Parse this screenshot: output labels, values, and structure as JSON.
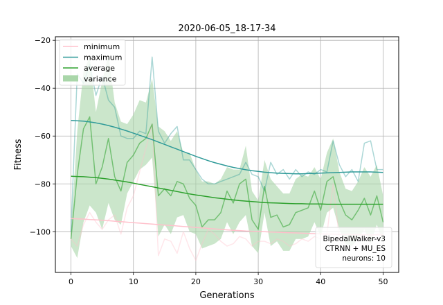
{
  "chart_data": {
    "type": "line",
    "title": "2020-06-05_18-17-34",
    "xlabel": "Generations",
    "ylabel": "Fitness",
    "xlim": [
      -2.5,
      52.5
    ],
    "ylim": [
      -117,
      -18.5
    ],
    "xticks": [
      0,
      10,
      20,
      30,
      40,
      50
    ],
    "yticks": [
      -100,
      -80,
      -60,
      -40,
      -20
    ],
    "grid": true,
    "legend_position": "top-left",
    "legend": [
      {
        "label": "minimum",
        "color": "#ffc0cb",
        "kind": "line"
      },
      {
        "label": "maximum",
        "color": "#2e9a98",
        "kind": "line"
      },
      {
        "label": "average",
        "color": "#2ca02c",
        "kind": "line"
      },
      {
        "label": "variance",
        "color": "#a9d6a9",
        "kind": "patch"
      }
    ],
    "info_box": {
      "position": "bottom-right",
      "lines": [
        "BipedalWalker-v3",
        "CTRNN + MU_ES",
        "neurons: 10"
      ]
    },
    "x": [
      0,
      1,
      2,
      3,
      4,
      5,
      6,
      7,
      8,
      9,
      10,
      11,
      12,
      13,
      14,
      15,
      16,
      17,
      18,
      19,
      20,
      21,
      22,
      23,
      24,
      25,
      26,
      27,
      28,
      29,
      30,
      31,
      32,
      33,
      34,
      35,
      36,
      37,
      38,
      39,
      40,
      41,
      42,
      43,
      44,
      45,
      46,
      47,
      48,
      49,
      50
    ],
    "series": [
      {
        "name": "minimum",
        "color": "#ffc0cb",
        "role": "raw",
        "values": [
          -103,
          -106,
          -97,
          -92,
          -96,
          -99,
          -95,
          -93,
          -101,
          -90,
          -85,
          -75,
          -65,
          -55,
          -110,
          -103,
          -104,
          -109,
          -100,
          -107,
          -112,
          -105,
          -99,
          -101,
          -104,
          -106,
          -105,
          -102,
          -103,
          -106,
          -104,
          -104,
          -105,
          -103,
          -104,
          -106,
          -105,
          -103,
          -104,
          -102,
          -103,
          -101,
          -80,
          -103,
          -102,
          -103,
          -101,
          -103,
          -102,
          -101,
          -100
        ]
      },
      {
        "name": "maximum",
        "color": "#2e9a98",
        "role": "raw",
        "values": [
          -100,
          -34,
          -38,
          -30,
          -43,
          -35,
          -45,
          -48,
          -60,
          -61,
          -61,
          -58,
          -59,
          -27,
          -58,
          -63,
          -59,
          -56,
          -70,
          -70,
          -74,
          -78,
          -80,
          -80,
          -79,
          -78,
          -77,
          -76,
          -71,
          -76,
          -77,
          -83,
          -71,
          -76,
          -74,
          -78,
          -74,
          -77,
          -75,
          -76,
          -74,
          -75,
          -62,
          -72,
          -77,
          -74,
          -79,
          -63,
          -62,
          -74,
          -74
        ]
      },
      {
        "name": "average",
        "color": "#2ca02c",
        "role": "raw",
        "values": [
          -103,
          -76,
          -57,
          -52,
          -80,
          -73,
          -61,
          -77,
          -83,
          -71,
          -68,
          -63,
          -61,
          -55,
          -85,
          -82,
          -85,
          -79,
          -80,
          -86,
          -89,
          -98,
          -95,
          -95,
          -92,
          -83,
          -88,
          -80,
          -78,
          -95,
          -99,
          -81,
          -94,
          -93,
          -98,
          -97,
          -92,
          -91,
          -90,
          -83,
          -91,
          -79,
          -77,
          -87,
          -93,
          -95,
          -91,
          -86,
          -93,
          -85,
          -96
        ]
      },
      {
        "name": "variance",
        "color": "#a9d6a9",
        "role": "band",
        "lower": [
          -106,
          -111,
          -96,
          -89,
          -92,
          -99,
          -88,
          -95,
          -97,
          -84,
          -79,
          -74,
          -72,
          -69,
          -102,
          -97,
          -101,
          -94,
          -93,
          -100,
          -101,
          -107,
          -106,
          -105,
          -103,
          -96,
          -101,
          -96,
          -93,
          -106,
          -109,
          -92,
          -106,
          -104,
          -108,
          -108,
          -103,
          -103,
          -102,
          -96,
          -102,
          -92,
          -90,
          -99,
          -105,
          -106,
          -103,
          -99,
          -105,
          -97,
          -104
        ],
        "upper": [
          -100,
          -58,
          -33,
          -27,
          -50,
          -37,
          -26,
          -46,
          -54,
          -55,
          -51,
          -45,
          -46,
          -36,
          -56,
          -58,
          -62,
          -58,
          -67,
          -67,
          -74,
          -79,
          -79,
          -80,
          -78,
          -73,
          -74,
          -74,
          -64,
          -83,
          -87,
          -70,
          -78,
          -81,
          -84,
          -84,
          -78,
          -76,
          -77,
          -73,
          -78,
          -67,
          -61,
          -75,
          -82,
          -83,
          -79,
          -73,
          -77,
          -72,
          -85
        ]
      },
      {
        "name": "maximum-trend",
        "color": "#2e9a98",
        "role": "trend",
        "values": [
          -53.5,
          -53.6,
          -53.8,
          -54.1,
          -54.5,
          -55.0,
          -55.6,
          -56.3,
          -57.1,
          -57.9,
          -58.8,
          -59.7,
          -60.6,
          -61.5,
          -62.5,
          -63.5,
          -64.5,
          -65.5,
          -66.5,
          -67.5,
          -68.5,
          -69.4,
          -70.3,
          -71.1,
          -71.8,
          -72.5,
          -73.1,
          -73.6,
          -74.1,
          -74.5,
          -74.8,
          -75.1,
          -75.3,
          -75.5,
          -75.6,
          -75.7,
          -75.8,
          -75.8,
          -75.7,
          -75.6,
          -75.5,
          -75.4,
          -75.3,
          -75.2,
          -75.1,
          -75.0,
          -75.0,
          -75.0,
          -75.0,
          -75.1,
          -75.2
        ]
      },
      {
        "name": "average-trend",
        "color": "#2ca02c",
        "role": "trend",
        "values": [
          -76.8,
          -76.9,
          -77.0,
          -77.2,
          -77.4,
          -77.7,
          -78.0,
          -78.4,
          -78.8,
          -79.2,
          -79.7,
          -80.2,
          -80.7,
          -81.2,
          -81.7,
          -82.2,
          -82.7,
          -83.2,
          -83.7,
          -84.2,
          -84.6,
          -85.0,
          -85.4,
          -85.8,
          -86.1,
          -86.4,
          -86.7,
          -87.0,
          -87.2,
          -87.4,
          -87.6,
          -87.8,
          -87.9,
          -88.0,
          -88.1,
          -88.2,
          -88.3,
          -88.3,
          -88.4,
          -88.4,
          -88.4,
          -88.5,
          -88.5,
          -88.5,
          -88.5,
          -88.5,
          -88.5,
          -88.5,
          -88.5,
          -88.5,
          -88.5
        ]
      },
      {
        "name": "minimum-trend",
        "color": "#ffc0cb",
        "role": "trend",
        "values": [
          -94.5,
          -94.6,
          -94.7,
          -94.9,
          -95.0,
          -95.2,
          -95.4,
          -95.6,
          -95.8,
          -96.0,
          -96.2,
          -96.4,
          -96.6,
          -96.8,
          -97.0,
          -97.2,
          -97.4,
          -97.6,
          -97.8,
          -98.0,
          -98.2,
          -98.4,
          -98.6,
          -98.8,
          -99.0,
          -99.2,
          -99.4,
          -99.5,
          -99.7,
          -99.8,
          -99.9,
          -100.0,
          -100.1,
          -100.2,
          -100.3,
          -100.4,
          -100.5,
          -100.6,
          -100.7,
          -100.8,
          -100.9,
          -101.0,
          -101.0,
          -101.1,
          -101.1,
          -101.2,
          -101.2,
          -101.3,
          -101.3,
          -101.3,
          -101.3
        ]
      }
    ]
  }
}
